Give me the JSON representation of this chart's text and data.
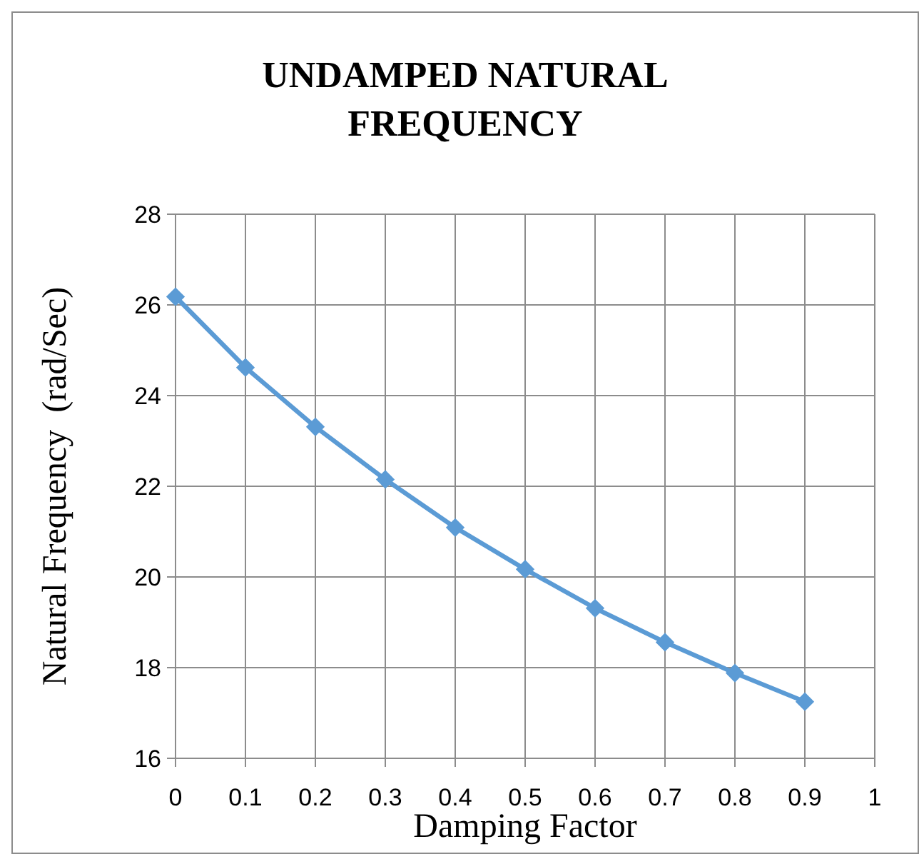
{
  "chart_data": {
    "type": "line",
    "title": "UNDAMPED NATURAL FREQUENCY",
    "xlabel": "Damping Factor",
    "ylabel": "Natural Frequency  (rad/Sec)",
    "x": [
      0,
      0.1,
      0.2,
      0.3,
      0.4,
      0.5,
      0.6,
      0.7,
      0.8,
      0.9
    ],
    "series": [
      {
        "color": "#5b9bd5",
        "values": [
          26.18,
          24.62,
          23.31,
          22.15,
          21.09,
          20.17,
          19.31,
          18.56,
          17.88,
          17.25
        ]
      }
    ],
    "xlim": [
      0,
      1
    ],
    "xticks": [
      0,
      0.1,
      0.2,
      0.3,
      0.4,
      0.5,
      0.6,
      0.7,
      0.8,
      0.9,
      1
    ],
    "ylim": [
      16,
      28
    ],
    "yticks": [
      16,
      18,
      20,
      22,
      24,
      26,
      28
    ],
    "grid": true,
    "marker": "diamond",
    "line_style": "solid"
  }
}
